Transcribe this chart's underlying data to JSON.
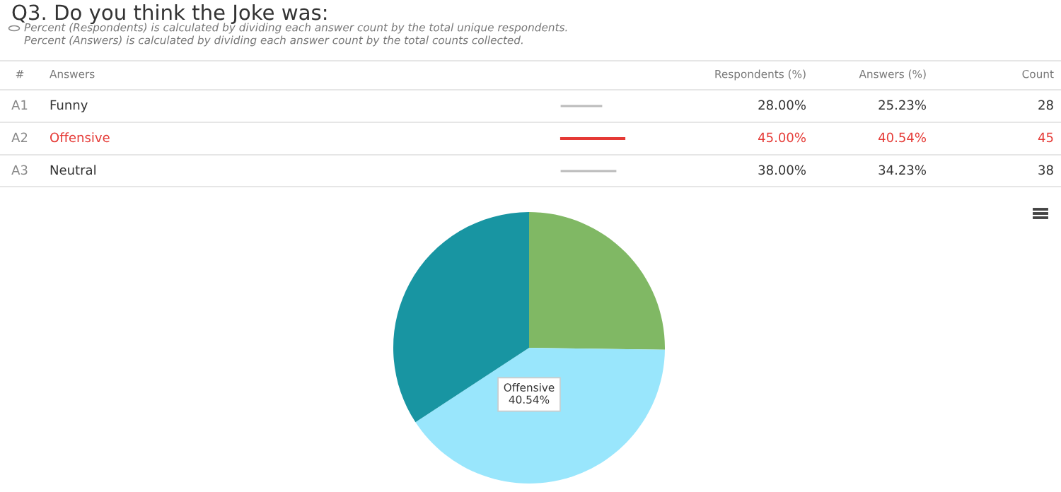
{
  "chart_data": [
    {
      "type": "other",
      "title": "Q3. Do you think the Joke was:",
      "annotations": [
        "Percent (Respondents) is calculated by dividing each answer count by the total unique respondents.",
        "Percent (Answers) is calculated by dividing each answer count by the total counts collected.",
        "#",
        "Answers",
        "Respondents (%)",
        "Answers (%)",
        "Count",
        "A1",
        "Funny",
        "28.00%",
        "25.23%",
        "28",
        "A2",
        "Offensive",
        "45.00%",
        "40.54%",
        "45",
        "A3",
        "Neutral",
        "38.00%",
        "34.23%",
        "38"
      ],
      "colors": [
        "#bbbbbb",
        "#e53935",
        "#bbbbbb"
      ]
    },
    {
      "type": "pie",
      "categories": [
        null,
        null,
        null
      ],
      "values": [
        25.23,
        40.54,
        34.23
      ],
      "colors": [
        "#80b864",
        "#99e6fc",
        "#1895a2"
      ],
      "annotations": [
        "Offensive",
        "40.54%"
      ]
    }
  ]
}
